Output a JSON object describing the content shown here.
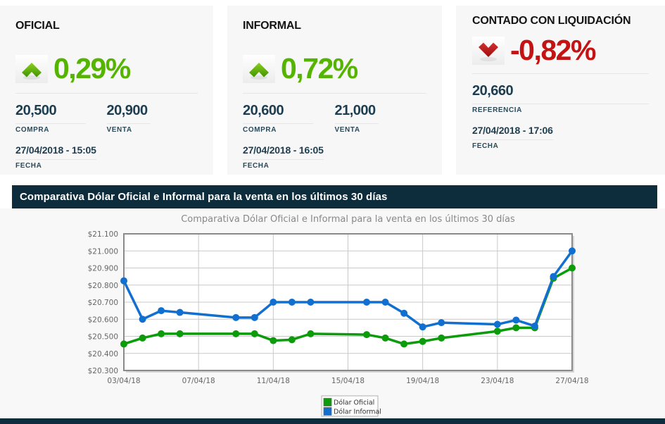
{
  "cards": [
    {
      "title": "OFICIAL",
      "direction": "up",
      "percent": "0,29%",
      "fields": [
        {
          "value": "20,500",
          "label": "COMPRA"
        },
        {
          "value": "20,900",
          "label": "VENTA"
        }
      ],
      "date": "27/04/2018 - 15:05",
      "date_label": "FECHA"
    },
    {
      "title": "INFORMAL",
      "direction": "up",
      "percent": "0,72%",
      "fields": [
        {
          "value": "20,600",
          "label": "COMPRA"
        },
        {
          "value": "21,000",
          "label": "VENTA"
        }
      ],
      "date": "27/04/2018 - 16:05",
      "date_label": "FECHA"
    },
    {
      "title": "CONTADO CON LIQUIDACIÓN",
      "direction": "down",
      "percent": "-0,82%",
      "fields": [
        {
          "value": "20,660",
          "label": "REFERENCIA"
        }
      ],
      "date": "27/04/2018 - 17:06",
      "date_label": "FECHA"
    }
  ],
  "banner": {
    "title": "Comparativa Dólar Oficial e Informal para la venta en los últimos 30 días"
  },
  "chart_data": {
    "type": "line",
    "title": "Comparativa Dólar Oficial e Informal para la venta en los últimos 30 días",
    "x_dates": [
      "03/04/18",
      "04/04/18",
      "05/04/18",
      "06/04/18",
      "09/04/18",
      "10/04/18",
      "11/04/18",
      "12/04/18",
      "13/04/18",
      "16/04/18",
      "17/04/18",
      "18/04/18",
      "19/04/18",
      "20/04/18",
      "23/04/18",
      "24/04/18",
      "25/04/18",
      "26/04/18",
      "27/04/18"
    ],
    "x_days": [
      3,
      4,
      5,
      6,
      9,
      10,
      11,
      12,
      13,
      16,
      17,
      18,
      19,
      20,
      23,
      24,
      25,
      26,
      27
    ],
    "xlim_days": [
      3,
      27
    ],
    "x_tick_days": [
      3,
      7,
      11,
      15,
      19,
      23,
      27
    ],
    "x_tick_labels": [
      "03/04/18",
      "07/04/18",
      "11/04/18",
      "15/04/18",
      "19/04/18",
      "23/04/18",
      "27/04/18"
    ],
    "y_ticks": [
      "$21.100",
      "$21.000",
      "$20.900",
      "$20.800",
      "$20.700",
      "$20.600",
      "$20.500",
      "$20.400",
      "$20.300"
    ],
    "ylim": [
      20.3,
      21.1
    ],
    "grid": true,
    "legend_position": "bottom-center",
    "series": [
      {
        "name": "Dólar Oficial",
        "color": "#0b9b0b",
        "values": [
          20.455,
          20.49,
          20.515,
          20.515,
          20.515,
          20.515,
          20.475,
          20.48,
          20.515,
          20.51,
          20.49,
          20.455,
          20.47,
          20.49,
          20.53,
          20.55,
          20.55,
          20.84,
          20.9
        ]
      },
      {
        "name": "Dólar Informal",
        "color": "#1170cf",
        "values": [
          20.825,
          20.6,
          20.65,
          20.64,
          20.61,
          20.61,
          20.7,
          20.7,
          20.7,
          20.7,
          20.7,
          20.635,
          20.555,
          20.58,
          20.57,
          20.595,
          20.56,
          20.85,
          21.0
        ]
      }
    ]
  },
  "colors": {
    "accent_up_green": "#55b400",
    "accent_down_red": "#c41313",
    "navy_banner": "#0d2c3c",
    "value_text": "#1d3d50",
    "card_bg": "#f7f7f7"
  }
}
